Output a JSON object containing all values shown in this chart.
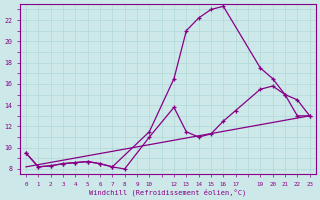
{
  "xlabel": "Windchill (Refroidissement éolien,°C)",
  "bg_color": "#cce8e8",
  "line_color": "#880088",
  "xlim": [
    -0.5,
    23.5
  ],
  "ylim": [
    7.5,
    23.5
  ],
  "xticks": [
    0,
    1,
    2,
    3,
    4,
    5,
    6,
    7,
    8,
    9,
    10,
    12,
    13,
    14,
    15,
    16,
    17,
    19,
    20,
    21,
    22,
    23
  ],
  "yticks": [
    8,
    10,
    12,
    14,
    16,
    18,
    20,
    22
  ],
  "series1_x": [
    0,
    1,
    2,
    3,
    4,
    5,
    6,
    7,
    10,
    12,
    13,
    14,
    15,
    16,
    19,
    20,
    21,
    22,
    23
  ],
  "series1_y": [
    9.5,
    8.2,
    8.3,
    8.5,
    8.6,
    8.7,
    8.5,
    8.2,
    11.5,
    16.5,
    21.0,
    22.2,
    23.0,
    23.3,
    17.5,
    16.5,
    15.0,
    13.0,
    13.0
  ],
  "series2_x": [
    0,
    1,
    2,
    3,
    4,
    5,
    6,
    7,
    8,
    10,
    12,
    13,
    14,
    15,
    16,
    17,
    19,
    20,
    21,
    22,
    23
  ],
  "series2_y": [
    9.5,
    8.2,
    8.3,
    8.5,
    8.6,
    8.7,
    8.5,
    8.2,
    8.0,
    11.0,
    13.8,
    11.5,
    11.0,
    11.3,
    12.5,
    13.5,
    15.5,
    15.8,
    15.0,
    14.5,
    13.0
  ],
  "series3_x": [
    0,
    23
  ],
  "series3_y": [
    8.2,
    13.0
  ]
}
